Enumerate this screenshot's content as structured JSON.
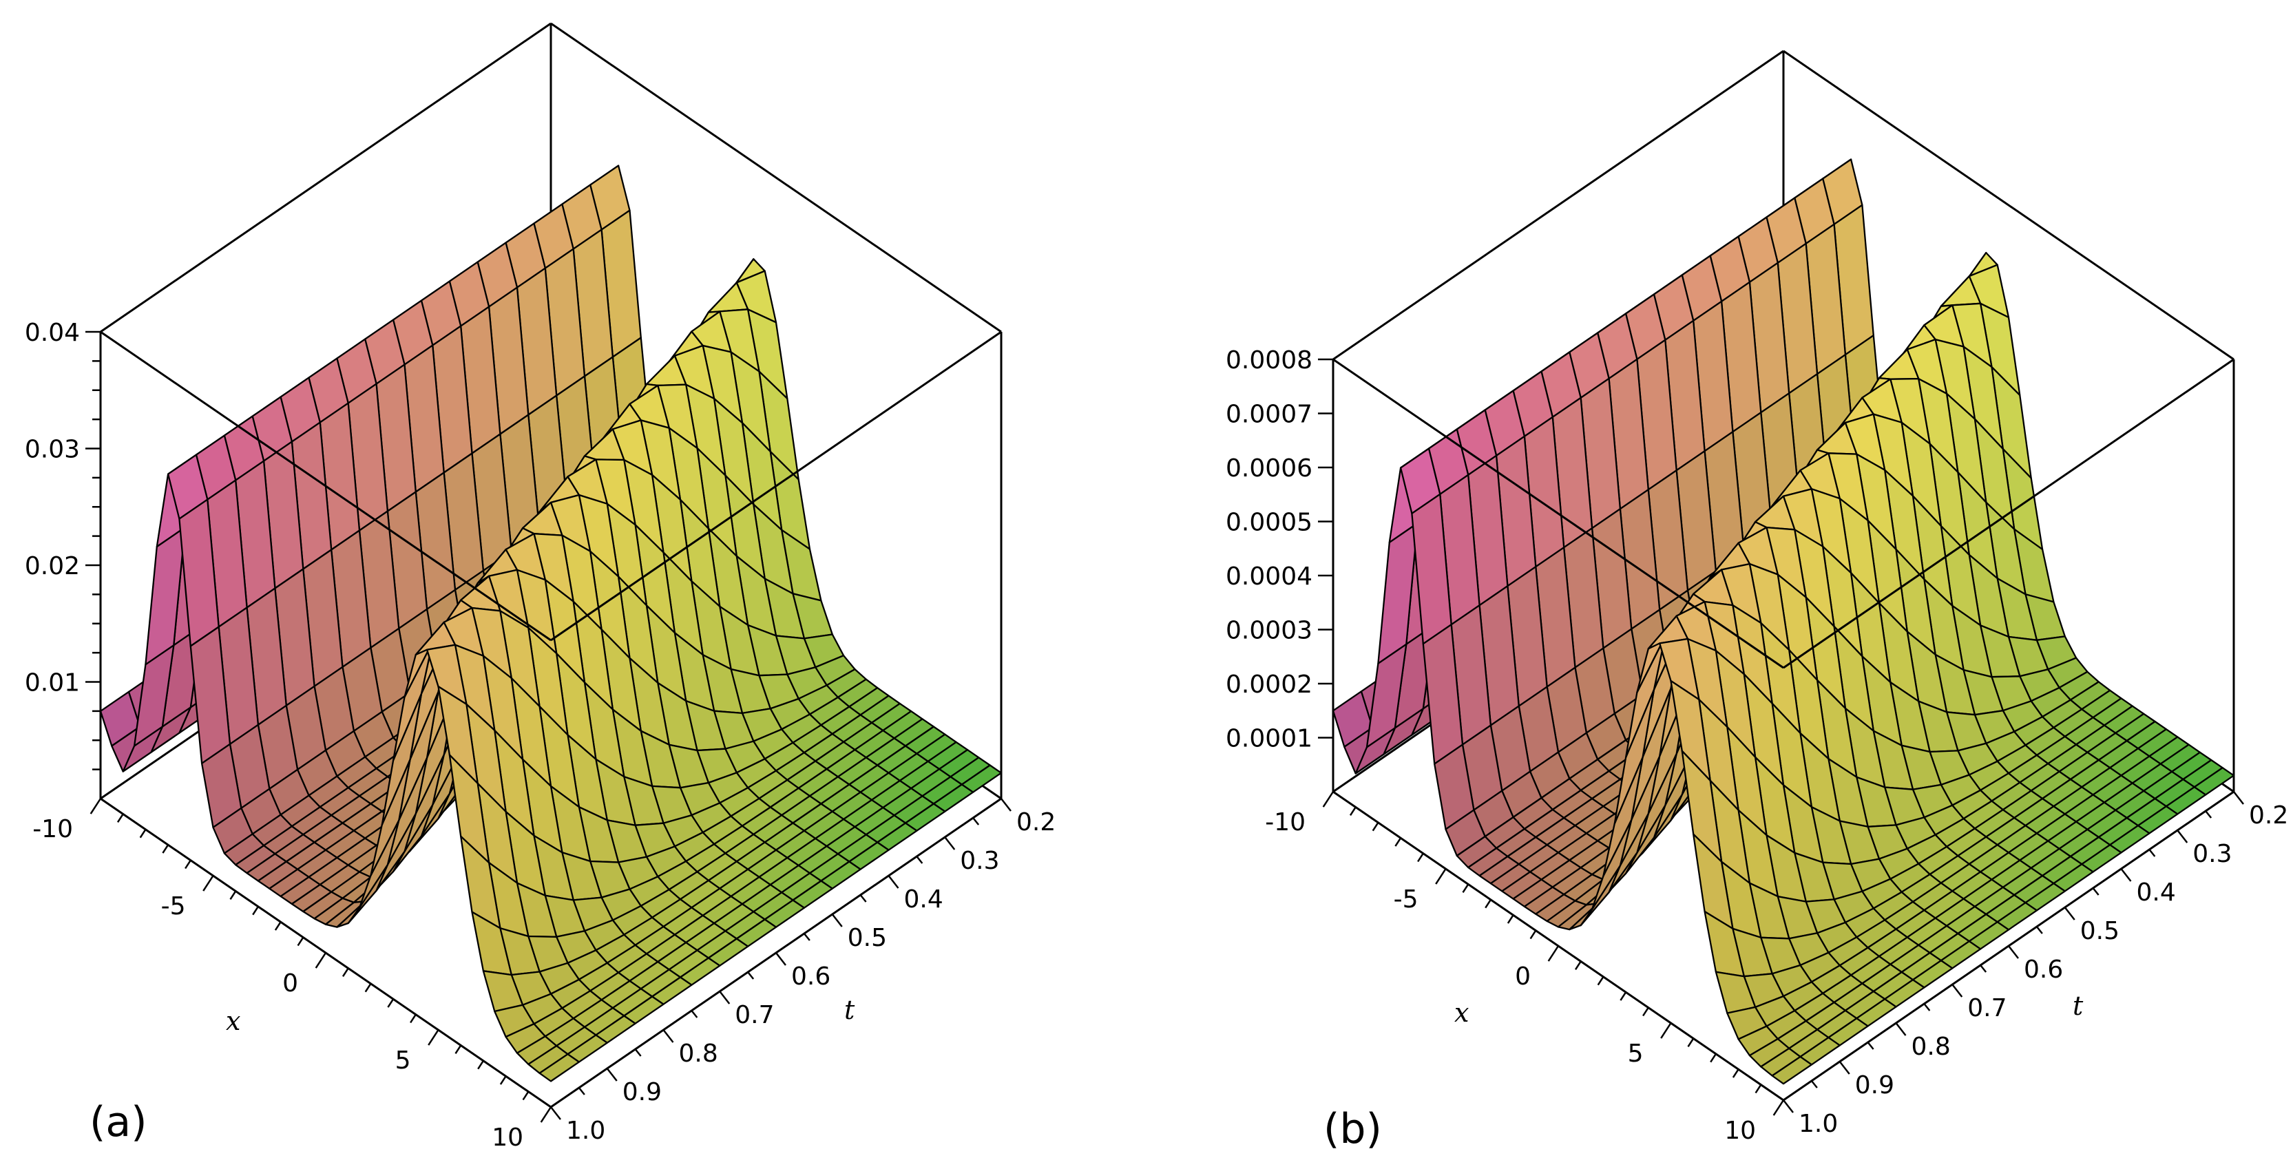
{
  "chart_data": [
    {
      "type": "surface3d",
      "panel_label": "(a)",
      "xlabel": "x",
      "tlabel": "t",
      "zlabel": "",
      "x_range": [
        -10,
        10
      ],
      "t_range": [
        0.2,
        1.0
      ],
      "z_range": [
        0,
        0.04
      ],
      "x_ticks": [
        "-10",
        "-5",
        "0",
        "5",
        "10"
      ],
      "t_ticks": [
        "0.2",
        "0.3",
        "0.4",
        "0.5",
        "0.6",
        "0.7",
        "0.8",
        "0.9",
        "1.0"
      ],
      "z_ticks": [
        "0.01",
        "0.02",
        "0.03",
        "0.04"
      ],
      "z_peak": 0.032,
      "z_floor": 0.0022,
      "z_edge": 0.0075,
      "colormap": [
        "#ef66ff",
        "#e06a99",
        "#e8a07a",
        "#f2e05a",
        "#d8f05a",
        "#6be04a"
      ]
    },
    {
      "type": "surface3d",
      "panel_label": "(b)",
      "xlabel": "x",
      "tlabel": "t",
      "zlabel": "",
      "x_range": [
        -10,
        10
      ],
      "t_range": [
        0.2,
        1.0
      ],
      "z_range": [
        0,
        0.0008
      ],
      "x_ticks": [
        "-10",
        "-5",
        "0",
        "5",
        "10"
      ],
      "t_ticks": [
        "0.2",
        "0.3",
        "0.4",
        "0.5",
        "0.6",
        "0.7",
        "0.8",
        "0.9",
        "1.0"
      ],
      "z_ticks": [
        "0.0001",
        "0.0002",
        "0.0003",
        "0.0004",
        "0.0005",
        "0.0006",
        "0.0007",
        "0.0008"
      ],
      "z_peak": 0.00069,
      "z_floor": 3e-05,
      "z_edge": 0.00015,
      "colormap": [
        "#ef66ff",
        "#e06a99",
        "#e8a07a",
        "#f2e05a",
        "#d8f05a",
        "#6be04a"
      ]
    }
  ]
}
